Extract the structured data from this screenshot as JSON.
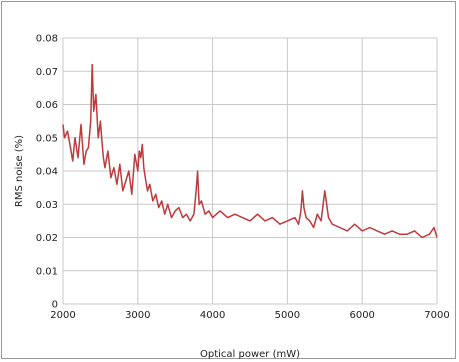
{
  "chart_data": {
    "type": "line",
    "title": "",
    "xlabel": "Optical power (mW)",
    "ylabel": "RMS noise (%)",
    "xlim": [
      2000,
      7000
    ],
    "ylim": [
      0,
      0.08
    ],
    "x_ticks": [
      2000,
      3000,
      4000,
      5000,
      6000,
      7000
    ],
    "y_ticks": [
      0,
      0.01,
      0.02,
      0.03,
      0.04,
      0.05,
      0.06,
      0.07,
      0.08
    ],
    "x_tick_labels": [
      "2000",
      "3000",
      "4000",
      "5000",
      "6000",
      "7000"
    ],
    "y_tick_labels": [
      "0",
      "0.01",
      "0.02",
      "0.03",
      "0.04",
      "0.05",
      "0.06",
      "0.07",
      "0.08"
    ],
    "grid": {
      "vertical": true,
      "horizontal": true
    },
    "legend": "none",
    "series": [
      {
        "color": "#c0393b",
        "x": [
          1980,
          2020,
          2060,
          2100,
          2130,
          2160,
          2200,
          2240,
          2280,
          2310,
          2340,
          2370,
          2390,
          2410,
          2440,
          2470,
          2500,
          2520,
          2540,
          2560,
          2600,
          2640,
          2680,
          2720,
          2760,
          2800,
          2840,
          2880,
          2920,
          2960,
          3000,
          3020,
          3040,
          3060,
          3080,
          3100,
          3130,
          3160,
          3200,
          3240,
          3280,
          3320,
          3360,
          3400,
          3450,
          3500,
          3550,
          3600,
          3650,
          3700,
          3750,
          3780,
          3800,
          3820,
          3850,
          3900,
          3950,
          4000,
          4100,
          4200,
          4300,
          4400,
          4500,
          4600,
          4700,
          4800,
          4900,
          5000,
          5100,
          5150,
          5180,
          5200,
          5220,
          5250,
          5300,
          5350,
          5400,
          5450,
          5500,
          5550,
          5600,
          5700,
          5800,
          5900,
          6000,
          6100,
          6200,
          6300,
          6400,
          6500,
          6600,
          6700,
          6800,
          6900,
          6960,
          7000
        ],
        "y": [
          0.054,
          0.05,
          0.052,
          0.047,
          0.043,
          0.05,
          0.044,
          0.054,
          0.042,
          0.046,
          0.047,
          0.055,
          0.072,
          0.058,
          0.063,
          0.05,
          0.055,
          0.049,
          0.044,
          0.041,
          0.046,
          0.038,
          0.041,
          0.036,
          0.042,
          0.034,
          0.037,
          0.04,
          0.033,
          0.045,
          0.04,
          0.046,
          0.044,
          0.048,
          0.041,
          0.038,
          0.034,
          0.036,
          0.031,
          0.033,
          0.029,
          0.031,
          0.027,
          0.03,
          0.026,
          0.028,
          0.029,
          0.026,
          0.027,
          0.025,
          0.027,
          0.034,
          0.04,
          0.03,
          0.031,
          0.027,
          0.028,
          0.026,
          0.028,
          0.026,
          0.027,
          0.026,
          0.025,
          0.027,
          0.025,
          0.026,
          0.024,
          0.025,
          0.026,
          0.024,
          0.028,
          0.034,
          0.029,
          0.026,
          0.025,
          0.023,
          0.027,
          0.025,
          0.034,
          0.026,
          0.024,
          0.023,
          0.022,
          0.024,
          0.022,
          0.023,
          0.022,
          0.021,
          0.022,
          0.021,
          0.021,
          0.022,
          0.02,
          0.021,
          0.023,
          0.02
        ]
      }
    ]
  }
}
